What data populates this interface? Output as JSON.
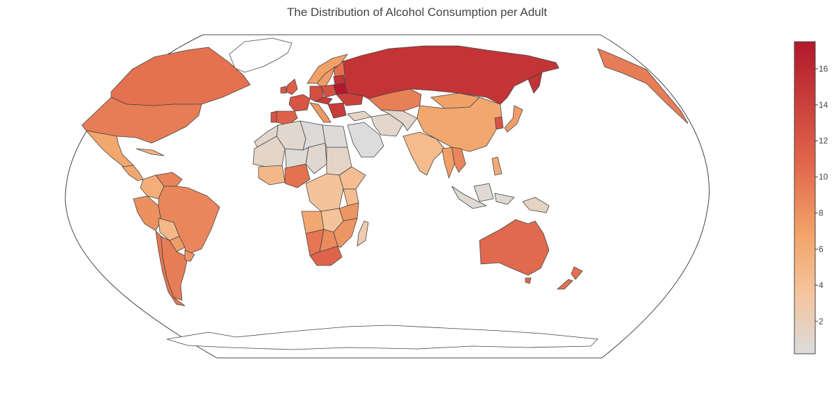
{
  "title": "The Distribution of Alcohol Consumption per Adult",
  "colors": {
    "land": "#ffffff",
    "border": "#444444",
    "ocean_outline": "#444444",
    "scale": [
      "#dcdcdc",
      "#f5c39a",
      "#f2a46a",
      "#e0644a",
      "#b2182b"
    ]
  },
  "colorbar": {
    "min": 0.2,
    "max": 17.5,
    "ticks": [
      2,
      4,
      6,
      8,
      10,
      12,
      14,
      16
    ]
  },
  "chart_data": {
    "type": "choropleth",
    "projection": "robinson",
    "title": "The Distribution of Alcohol Consumption per Adult",
    "countries": [
      {
        "name": "Russia",
        "value": 15.1
      },
      {
        "name": "Belarus",
        "value": 17.5
      },
      {
        "name": "Ukraine",
        "value": 13.9
      },
      {
        "name": "Lithuania",
        "value": 15.0
      },
      {
        "name": "Czech Republic",
        "value": 14.4
      },
      {
        "name": "Germany",
        "value": 12.8
      },
      {
        "name": "France",
        "value": 12.2
      },
      {
        "name": "Spain",
        "value": 11.2
      },
      {
        "name": "Portugal",
        "value": 12.3
      },
      {
        "name": "United Kingdom",
        "value": 11.4
      },
      {
        "name": "Ireland",
        "value": 11.9
      },
      {
        "name": "Poland",
        "value": 12.5
      },
      {
        "name": "Italy",
        "value": 7.5
      },
      {
        "name": "Sweden",
        "value": 7.2
      },
      {
        "name": "Norway",
        "value": 7.0
      },
      {
        "name": "Finland",
        "value": 10.0
      },
      {
        "name": "Kazakhstan",
        "value": 9.2
      },
      {
        "name": "Mongolia",
        "value": 6.9
      },
      {
        "name": "China",
        "value": 6.5
      },
      {
        "name": "India",
        "value": 4.5
      },
      {
        "name": "Iran",
        "value": 1.0
      },
      {
        "name": "Turkey",
        "value": 1.5
      },
      {
        "name": "Saudi Arabia",
        "value": 0.2
      },
      {
        "name": "Egypt",
        "value": 0.4
      },
      {
        "name": "Algeria",
        "value": 0.9
      },
      {
        "name": "Libya",
        "value": 0.3
      },
      {
        "name": "Japan",
        "value": 7.2
      },
      {
        "name": "South Korea",
        "value": 12.3
      },
      {
        "name": "Thailand",
        "value": 7.1
      },
      {
        "name": "Vietnam",
        "value": 8.7
      },
      {
        "name": "Indonesia",
        "value": 0.6
      },
      {
        "name": "Philippines",
        "value": 6.0
      },
      {
        "name": "Papua New Guinea",
        "value": 1.5
      },
      {
        "name": "Australia",
        "value": 10.6
      },
      {
        "name": "New Zealand",
        "value": 10.1
      },
      {
        "name": "Canada",
        "value": 10.0
      },
      {
        "name": "United States",
        "value": 9.3
      },
      {
        "name": "Mexico",
        "value": 6.5
      },
      {
        "name": "Cuba",
        "value": 5.4
      },
      {
        "name": "Colombia",
        "value": 5.8
      },
      {
        "name": "Venezuela",
        "value": 8.9
      },
      {
        "name": "Brazil",
        "value": 8.7
      },
      {
        "name": "Peru",
        "value": 8.1
      },
      {
        "name": "Bolivia",
        "value": 4.8
      },
      {
        "name": "Chile",
        "value": 9.6
      },
      {
        "name": "Argentina",
        "value": 9.3
      },
      {
        "name": "Paraguay",
        "value": 7.2
      },
      {
        "name": "Uruguay",
        "value": 7.6
      },
      {
        "name": "Nigeria",
        "value": 10.1
      },
      {
        "name": "Ghana",
        "value": 4.8
      },
      {
        "name": "Ethiopia",
        "value": 4.2
      },
      {
        "name": "Kenya",
        "value": 4.3
      },
      {
        "name": "Tanzania",
        "value": 7.7
      },
      {
        "name": "DR Congo",
        "value": 3.6
      },
      {
        "name": "Angola",
        "value": 6.4
      },
      {
        "name": "Namibia",
        "value": 9.8
      },
      {
        "name": "Botswana",
        "value": 8.4
      },
      {
        "name": "South Africa",
        "value": 11.0
      },
      {
        "name": "Madagascar",
        "value": 2.4
      },
      {
        "name": "Sudan",
        "value": 1.3
      },
      {
        "name": "Mali",
        "value": 1.3
      },
      {
        "name": "Niger",
        "value": 0.5
      },
      {
        "name": "Chad",
        "value": 0.9
      }
    ]
  }
}
